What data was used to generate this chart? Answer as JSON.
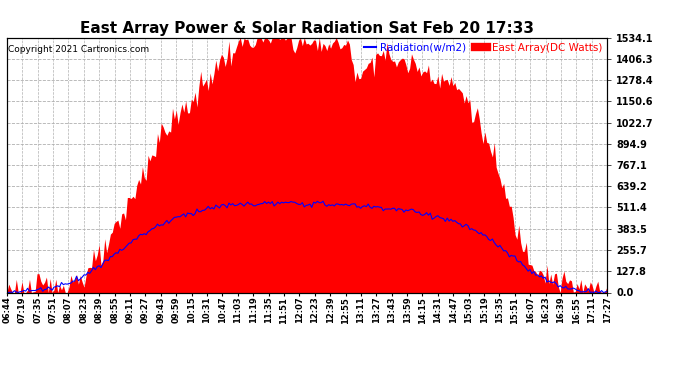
{
  "title": "East Array Power & Solar Radiation Sat Feb 20 17:33",
  "copyright": "Copyright 2021 Cartronics.com",
  "legend_radiation": "Radiation(w/m2)",
  "legend_east": "East Array(DC Watts)",
  "yticks": [
    0.0,
    127.8,
    255.7,
    383.5,
    511.4,
    639.2,
    767.1,
    894.9,
    1022.7,
    1150.6,
    1278.4,
    1406.3,
    1534.1
  ],
  "ymax": 1534.1,
  "ymin": 0.0,
  "background_color": "#ffffff",
  "plot_bg_color": "#ffffff",
  "grid_color": "#b0b0b0",
  "radiation_color": "#0000ff",
  "east_array_color": "#ff0000",
  "x_label_fontsize": 6,
  "title_fontsize": 11,
  "xtick_labels": [
    "06:44",
    "07:19",
    "07:35",
    "07:51",
    "08:07",
    "08:23",
    "08:39",
    "08:55",
    "09:11",
    "09:27",
    "09:43",
    "09:59",
    "10:15",
    "10:31",
    "10:47",
    "11:03",
    "11:19",
    "11:35",
    "11:51",
    "12:07",
    "12:23",
    "12:39",
    "12:55",
    "13:11",
    "13:27",
    "13:43",
    "13:59",
    "14:15",
    "14:31",
    "14:47",
    "15:03",
    "15:19",
    "15:35",
    "15:51",
    "16:07",
    "16:23",
    "16:39",
    "16:55",
    "17:11",
    "17:27"
  ],
  "east_array_values": [
    10,
    15,
    25,
    40,
    60,
    100,
    200,
    350,
    550,
    750,
    950,
    1050,
    1150,
    1280,
    1400,
    1480,
    1520,
    1534,
    1530,
    1510,
    1490,
    1500,
    1485,
    1300,
    1450,
    1400,
    1380,
    1350,
    1300,
    1250,
    1150,
    950,
    700,
    400,
    200,
    120,
    60,
    30,
    15,
    10
  ],
  "radiation_values": [
    5,
    8,
    15,
    30,
    60,
    100,
    160,
    230,
    300,
    360,
    410,
    450,
    480,
    505,
    520,
    528,
    532,
    535,
    536,
    535,
    533,
    530,
    526,
    520,
    513,
    504,
    492,
    476,
    455,
    428,
    390,
    340,
    278,
    200,
    130,
    75,
    35,
    15,
    5,
    2
  ]
}
